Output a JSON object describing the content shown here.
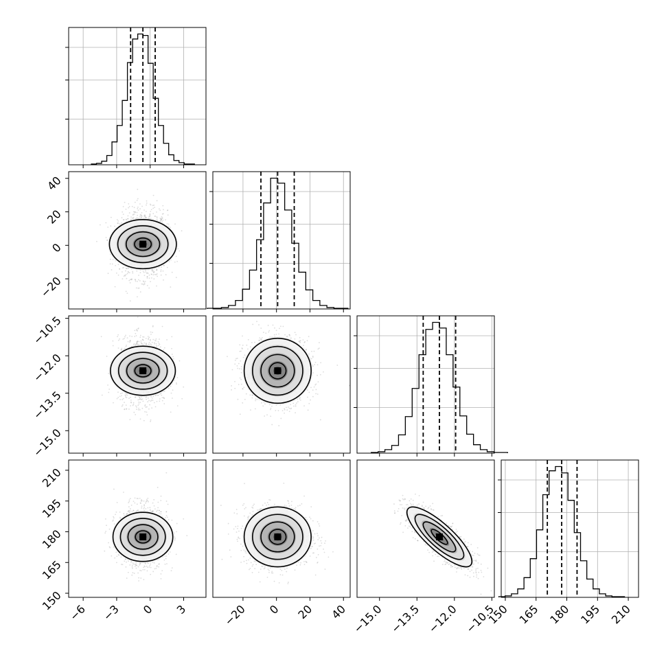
{
  "chart_data": {
    "type": "corner",
    "parameters": [
      {
        "range": [
          -7.3,
          5.0
        ],
        "ticks": [
          -6,
          -3,
          0,
          3
        ],
        "tick_labels": [
          "−6",
          "−3",
          "0",
          "3"
        ],
        "quantiles": [
          -1.75,
          -0.65,
          0.45
        ],
        "mean": -0.65,
        "sigma": 1.1
      },
      {
        "range": [
          -38,
          44
        ],
        "ticks": [
          -20,
          0,
          20,
          40
        ],
        "tick_labels": [
          "−20",
          "0",
          "20",
          "40"
        ],
        "quantiles": [
          -9.3,
          0.7,
          10.6
        ],
        "mean": 0.7,
        "sigma": 10.0
      },
      {
        "range": [
          -15.9,
          -10.4
        ],
        "ticks": [
          -15.0,
          -13.5,
          -12.0,
          -10.5
        ],
        "tick_labels": [
          "−15.0",
          "−13.5",
          "−12.0",
          "−10.5"
        ],
        "quantiles": [
          -13.25,
          -12.6,
          -11.95
        ],
        "mean": -12.6,
        "sigma": 0.65
      },
      {
        "range": [
          148,
          215
        ],
        "ticks": [
          150,
          165,
          180,
          195,
          210
        ],
        "tick_labels": [
          "150",
          "165",
          "180",
          "195",
          "210"
        ],
        "quantiles": [
          170.5,
          177.5,
          185.0
        ],
        "mean": 177.5,
        "sigma": 7.3
      }
    ],
    "histograms": [
      [
        1,
        2,
        5,
        13,
        32,
        55,
        90,
        143,
        176,
        183,
        181,
        142,
        93,
        55,
        30,
        14,
        6,
        3,
        1,
        1
      ],
      [
        1,
        1,
        2,
        5,
        12,
        28,
        55,
        98,
        150,
        185,
        178,
        140,
        93,
        52,
        27,
        12,
        5,
        2,
        1,
        1
      ],
      [
        1,
        2,
        5,
        11,
        26,
        52,
        92,
        140,
        176,
        186,
        178,
        140,
        94,
        53,
        27,
        12,
        5,
        2,
        1,
        1
      ],
      [
        1,
        2,
        5,
        12,
        28,
        55,
        96,
        146,
        180,
        186,
        177,
        138,
        92,
        52,
        26,
        12,
        5,
        2,
        1,
        1
      ]
    ],
    "correlations": [
      {
        "x": 0,
        "y": 1,
        "rho": 0.0
      },
      {
        "x": 0,
        "y": 2,
        "rho": 0.0
      },
      {
        "x": 1,
        "y": 2,
        "rho": 0.0
      },
      {
        "x": 0,
        "y": 3,
        "rho": 0.0
      },
      {
        "x": 1,
        "y": 3,
        "rho": 0.0
      },
      {
        "x": 2,
        "y": 3,
        "rho": -0.82
      }
    ],
    "contour_levels_sigma": [
      0.5,
      1.0,
      1.5,
      2.0
    ],
    "title": "",
    "xlabel": "",
    "ylabel": "",
    "grid": true,
    "colors": {
      "hist": "#000000",
      "points": "#9a9a9a",
      "grid": "#b0b0b0"
    }
  }
}
